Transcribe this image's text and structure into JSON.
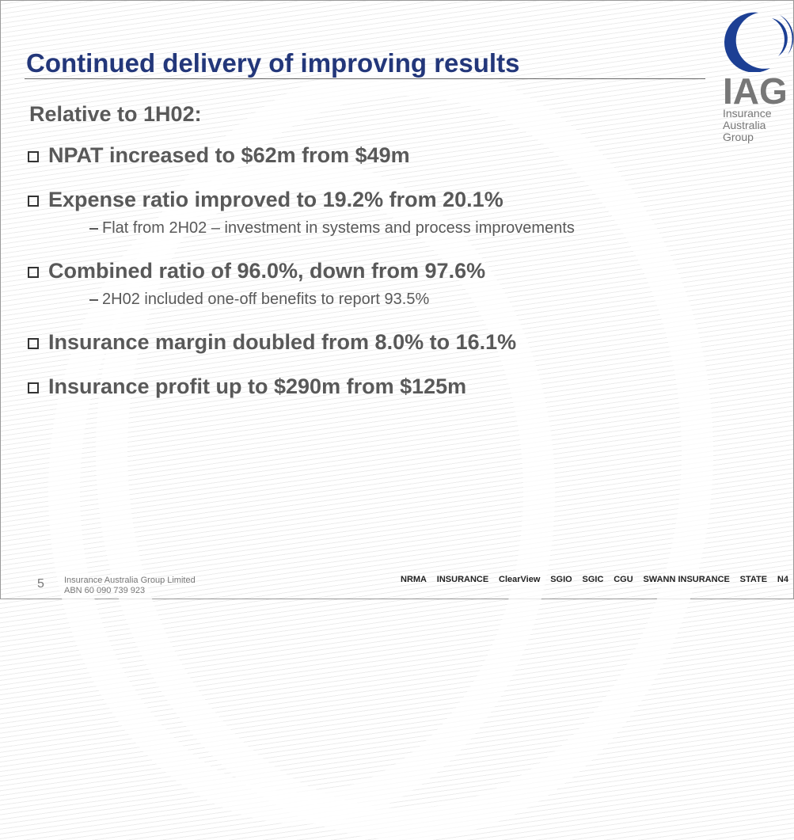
{
  "title": "Continued delivery of improving results",
  "subtitle": "Relative to 1H02:",
  "bullets": [
    {
      "text": "NPAT increased to $62m from $49m",
      "sub": []
    },
    {
      "text": "Expense ratio improved to 19.2% from 20.1%",
      "sub": [
        "Flat from 2H02 – investment in systems and process improvements"
      ]
    },
    {
      "text": "Combined ratio of 96.0%, down from 97.6%",
      "sub": [
        "2H02 included one-off benefits to report 93.5%"
      ]
    },
    {
      "text": "Insurance margin doubled from 8.0% to 16.1%",
      "sub": []
    },
    {
      "text": "Insurance profit up to $290m from $125m",
      "sub": []
    }
  ],
  "logo": {
    "mark": "IAG",
    "lines": [
      "Insurance",
      "Australia",
      "Group"
    ]
  },
  "footer": {
    "page": "5",
    "company": "Insurance Australia Group Limited",
    "abn": "ABN 60 090 739 923"
  },
  "brands": [
    "NRMA",
    "INSURANCE",
    "ClearView",
    "SGIO",
    "SGIC",
    "CGU",
    "SWANN INSURANCE",
    "STATE",
    "N4"
  ]
}
